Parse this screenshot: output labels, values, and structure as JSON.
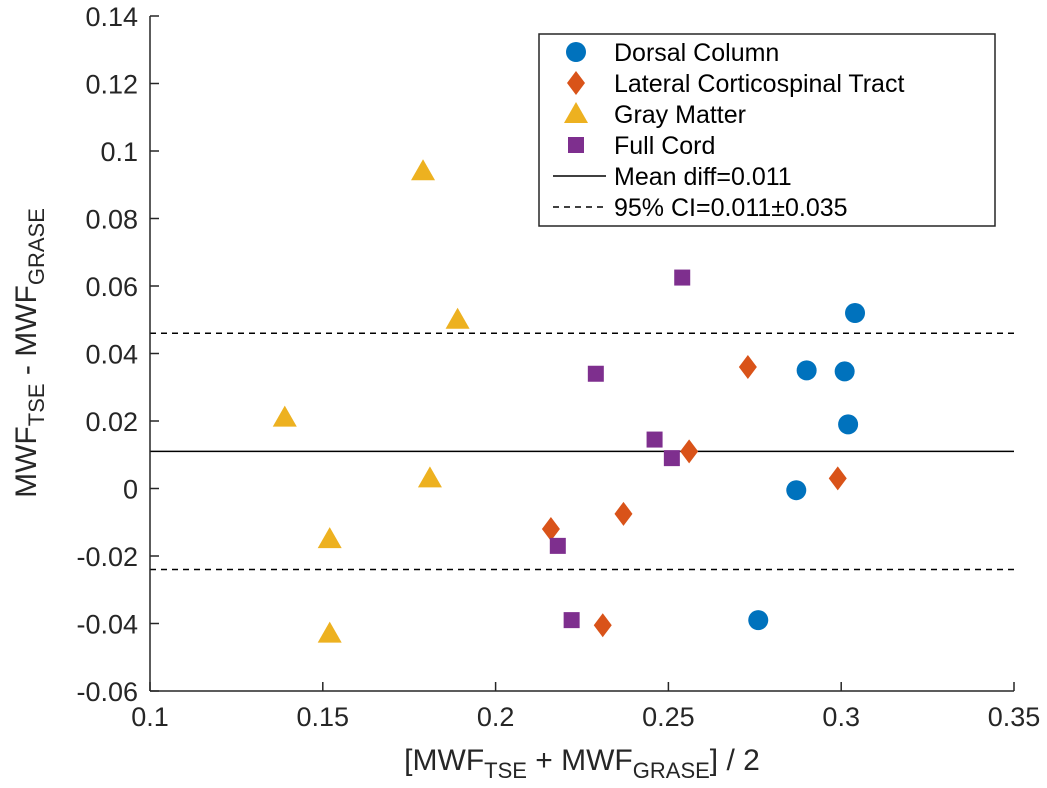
{
  "chart_data": {
    "type": "scatter",
    "xlim": [
      0.1,
      0.35
    ],
    "ylim": [
      -0.06,
      0.14
    ],
    "x_ticks": [
      {
        "value": 0.1,
        "label": "0.1"
      },
      {
        "value": 0.15,
        "label": "0.15"
      },
      {
        "value": 0.2,
        "label": "0.2"
      },
      {
        "value": 0.25,
        "label": "0.25"
      },
      {
        "value": 0.3,
        "label": "0.3"
      },
      {
        "value": 0.35,
        "label": "0.35"
      }
    ],
    "y_ticks": [
      {
        "value": -0.06,
        "label": "-0.06"
      },
      {
        "value": -0.04,
        "label": "-0.04"
      },
      {
        "value": -0.02,
        "label": "-0.02"
      },
      {
        "value": 0,
        "label": "0"
      },
      {
        "value": 0.02,
        "label": "0.02"
      },
      {
        "value": 0.04,
        "label": "0.04"
      },
      {
        "value": 0.06,
        "label": "0.06"
      },
      {
        "value": 0.08,
        "label": "0.08"
      },
      {
        "value": 0.1,
        "label": "0.1"
      },
      {
        "value": 0.12,
        "label": "0.12"
      },
      {
        "value": 0.14,
        "label": "0.14"
      }
    ],
    "xlabel": {
      "pre": "[MWF",
      "sub1": "TSE",
      "mid": " + MWF",
      "sub2": "GRASE",
      "post": "] / 2"
    },
    "ylabel": {
      "pre": "MWF",
      "sub1": "TSE",
      "mid": " - MWF",
      "sub2": "GRASE"
    },
    "series": [
      {
        "name": "Dorsal Column",
        "marker": "circle",
        "color": "#0072BD",
        "points": [
          [
            0.304,
            0.052
          ],
          [
            0.29,
            0.035
          ],
          [
            0.301,
            0.0347
          ],
          [
            0.302,
            0.019
          ],
          [
            0.287,
            -0.0005
          ],
          [
            0.276,
            -0.039
          ]
        ]
      },
      {
        "name": "Lateral Corticospinal Tract",
        "marker": "diamond",
        "color": "#D95319",
        "points": [
          [
            0.273,
            0.036
          ],
          [
            0.256,
            0.011
          ],
          [
            0.299,
            0.003
          ],
          [
            0.237,
            -0.0075
          ],
          [
            0.216,
            -0.012
          ],
          [
            0.231,
            -0.0405
          ]
        ]
      },
      {
        "name": "Gray Matter",
        "marker": "triangle",
        "color": "#EDB120",
        "points": [
          [
            0.179,
            0.094
          ],
          [
            0.189,
            0.05
          ],
          [
            0.139,
            0.021
          ],
          [
            0.181,
            0.003
          ],
          [
            0.152,
            -0.015
          ],
          [
            0.152,
            -0.043
          ]
        ]
      },
      {
        "name": "Full Cord",
        "marker": "square",
        "color": "#7E2F8E",
        "points": [
          [
            0.254,
            0.0625
          ],
          [
            0.229,
            0.034
          ],
          [
            0.246,
            0.0145
          ],
          [
            0.251,
            0.009
          ],
          [
            0.218,
            -0.017
          ],
          [
            0.222,
            -0.039
          ]
        ]
      }
    ],
    "lines": [
      {
        "name": "Mean diff",
        "style": "solid",
        "y": 0.011,
        "legend_label": "Mean diff=0.011"
      },
      {
        "name": "95% CI upper",
        "style": "dashed",
        "y": 0.046,
        "legend_label": "95% CI=0.011±0.035"
      },
      {
        "name": "95% CI lower",
        "style": "dashed",
        "y": -0.024
      }
    ],
    "legend": {
      "position": "top-right",
      "entries": [
        {
          "label": "Dorsal Column",
          "marker": "circle",
          "color": "#0072BD"
        },
        {
          "label": "Lateral Corticospinal Tract",
          "marker": "diamond",
          "color": "#D95319"
        },
        {
          "label": "Gray Matter",
          "marker": "triangle",
          "color": "#EDB120"
        },
        {
          "label": "Full Cord",
          "marker": "square",
          "color": "#7E2F8E"
        },
        {
          "label": "Mean diff=0.011",
          "line": "solid",
          "color": "#000000"
        },
        {
          "label": "95% CI=0.011±0.035",
          "line": "dashed",
          "color": "#000000"
        }
      ]
    }
  }
}
